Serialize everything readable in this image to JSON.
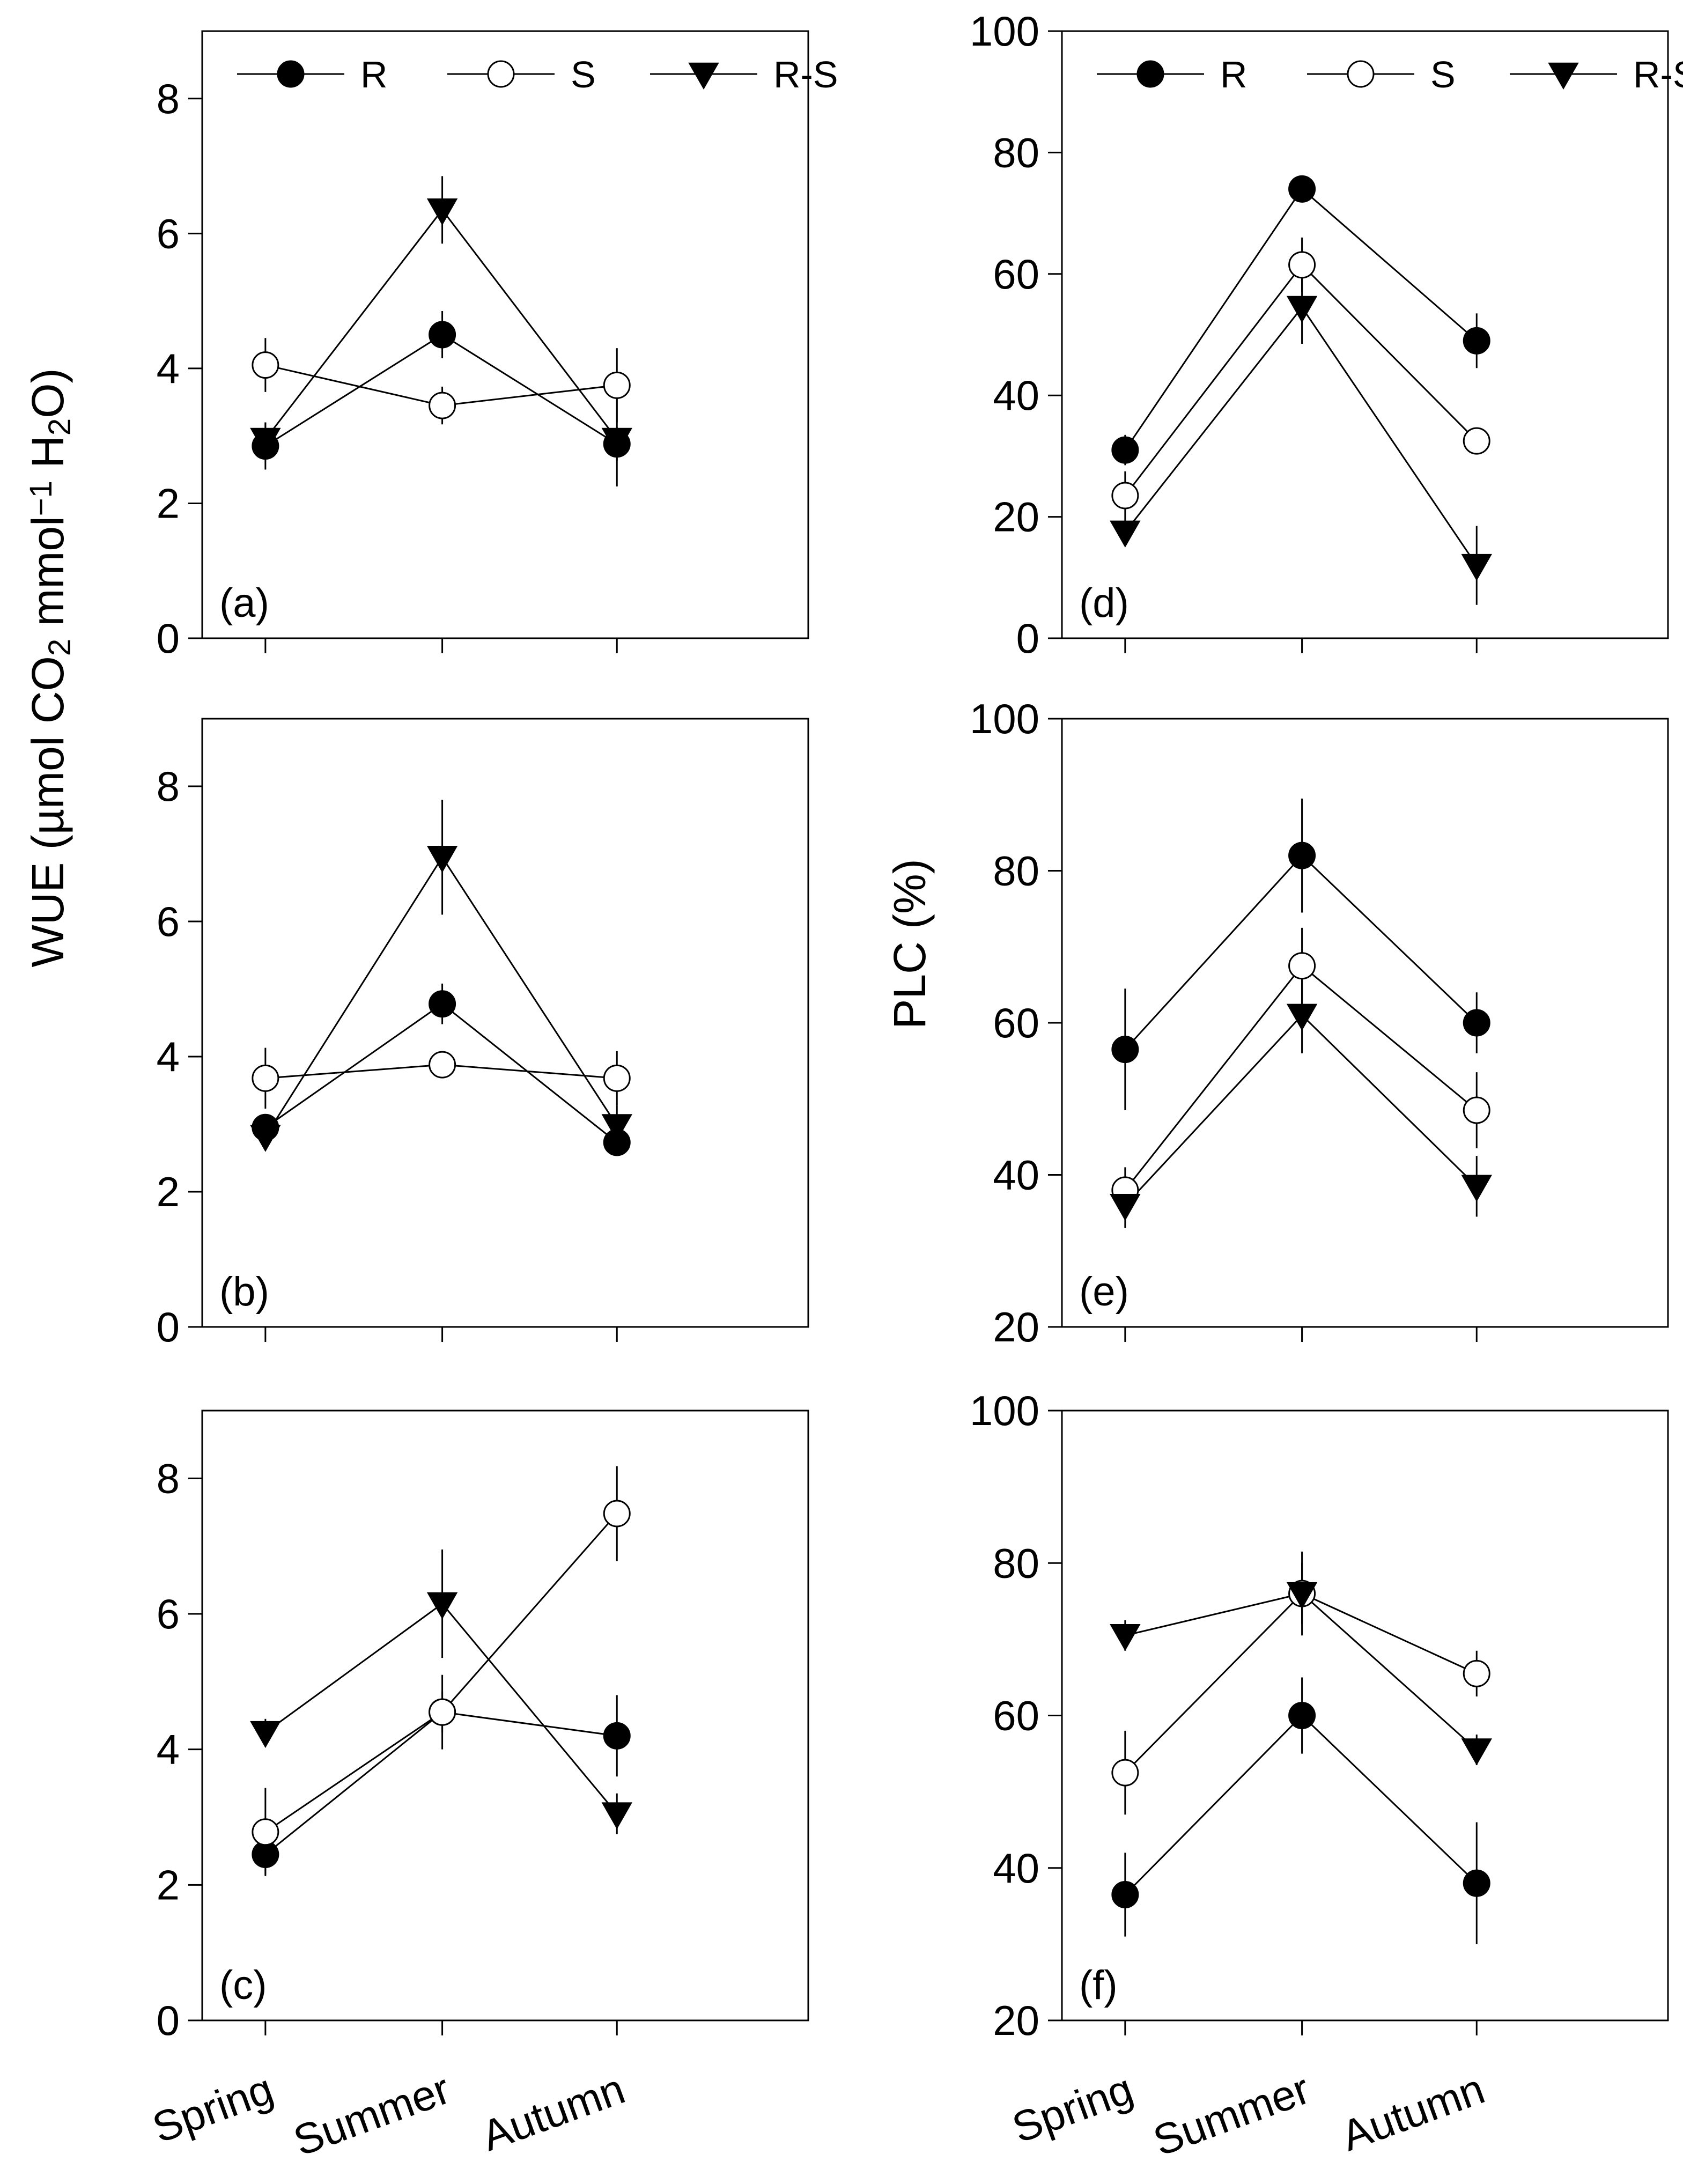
{
  "series_names": [
    "R",
    "S",
    "R-S"
  ],
  "categories": [
    "Spring",
    "Summer",
    "Autumn"
  ],
  "y_titles": {
    "left": "WUE (µmol CO2 mmol−1 H2O)",
    "left_parts": {
      "prefix": "WUE (µmol CO",
      "sub1": "2",
      "mid": " mmol",
      "sup": "−1",
      "mid2": " H",
      "sub2": "2",
      "suffix": "O)"
    },
    "right": "PLC (%)"
  },
  "colors": {
    "filled": "#000000",
    "open": "#ffffff",
    "axis": "#000000"
  },
  "chart_data": [
    {
      "panel": "(a)",
      "type": "scatter",
      "ylabel": "WUE (µmol CO2 mmol-1 H2O)",
      "ylim": [
        0,
        9
      ],
      "yticks": [
        0,
        2,
        4,
        6,
        8
      ],
      "legend": "top",
      "series": [
        {
          "name": "R",
          "marker": "filled-circle",
          "values": [
            2.85,
            4.5,
            2.88
          ],
          "err": [
            0.35,
            0.35,
            0.25
          ]
        },
        {
          "name": "S",
          "marker": "open-circle",
          "values": [
            4.05,
            3.45,
            3.75
          ],
          "err": [
            0.4,
            0.28,
            0.55
          ]
        },
        {
          "name": "R-S",
          "marker": "filled-triangle",
          "values": [
            2.95,
            6.35,
            2.95
          ],
          "err": [
            0.25,
            0.5,
            0.7
          ]
        }
      ]
    },
    {
      "panel": "(b)",
      "type": "scatter",
      "ylabel": "WUE (µmol CO2 mmol-1 H2O)",
      "ylim": [
        0,
        9
      ],
      "yticks": [
        0,
        2,
        4,
        6,
        8
      ],
      "series": [
        {
          "name": "R",
          "marker": "filled-circle",
          "values": [
            2.95,
            4.78,
            2.73
          ],
          "err": [
            0.2,
            0.3,
            0.2
          ]
        },
        {
          "name": "S",
          "marker": "open-circle",
          "values": [
            3.68,
            3.88,
            3.68
          ],
          "err": [
            0.45,
            0.2,
            0.4
          ]
        },
        {
          "name": "R-S",
          "marker": "filled-triangle",
          "values": [
            2.82,
            6.95,
            2.98
          ],
          "err": [
            0.15,
            0.85,
            0.3
          ]
        }
      ]
    },
    {
      "panel": "(c)",
      "type": "scatter",
      "ylabel": "WUE (µmol CO2 mmol-1 H2O)",
      "ylim": [
        0,
        9
      ],
      "yticks": [
        0,
        2,
        4,
        6,
        8
      ],
      "series": [
        {
          "name": "R",
          "marker": "filled-circle",
          "values": [
            2.45,
            4.55,
            4.2
          ],
          "err": [
            0.3,
            0.3,
            0.6
          ]
        },
        {
          "name": "S",
          "marker": "open-circle",
          "values": [
            2.78,
            4.55,
            7.48
          ],
          "err": [
            0.65,
            0.55,
            0.7
          ]
        },
        {
          "name": "R-S",
          "marker": "filled-triangle",
          "values": [
            4.25,
            6.15,
            3.05
          ],
          "err": [
            0.2,
            0.8,
            0.3
          ]
        }
      ]
    },
    {
      "panel": "(d)",
      "type": "scatter",
      "ylabel": "PLC (%)",
      "ylim": [
        0,
        100
      ],
      "yticks": [
        0,
        20,
        40,
        60,
        80,
        100
      ],
      "legend": "top",
      "series": [
        {
          "name": "R",
          "marker": "filled-circle",
          "values": [
            31,
            74,
            49
          ],
          "err": [
            2.5,
            2,
            4.5
          ]
        },
        {
          "name": "S",
          "marker": "open-circle",
          "values": [
            23.5,
            61.5,
            32.5
          ],
          "err": [
            4,
            4.5,
            2
          ]
        },
        {
          "name": "R-S",
          "marker": "filled-triangle",
          "values": [
            17.5,
            54.5,
            12
          ],
          "err": [
            2,
            6,
            6.5
          ]
        }
      ]
    },
    {
      "panel": "(e)",
      "type": "scatter",
      "ylabel": "PLC (%)",
      "ylim": [
        20,
        100
      ],
      "yticks": [
        20,
        40,
        60,
        80,
        100
      ],
      "series": [
        {
          "name": "R",
          "marker": "filled-circle",
          "values": [
            56.5,
            82,
            60
          ],
          "err": [
            8,
            7.5,
            4
          ]
        },
        {
          "name": "S",
          "marker": "open-circle",
          "values": [
            38,
            67.5,
            48.5
          ],
          "err": [
            3,
            5,
            5
          ]
        },
        {
          "name": "R-S",
          "marker": "filled-triangle",
          "values": [
            36,
            61,
            38.5
          ],
          "err": [
            3,
            5,
            4
          ]
        }
      ]
    },
    {
      "panel": "(f)",
      "type": "scatter",
      "ylabel": "PLC (%)",
      "ylim": [
        20,
        100
      ],
      "yticks": [
        20,
        40,
        60,
        80,
        100
      ],
      "series": [
        {
          "name": "R",
          "marker": "filled-circle",
          "values": [
            36.5,
            60,
            38
          ],
          "err": [
            5.5,
            5,
            8
          ]
        },
        {
          "name": "S",
          "marker": "open-circle",
          "values": [
            52.5,
            76,
            65.5
          ],
          "err": [
            5.5,
            4,
            3
          ]
        },
        {
          "name": "R-S",
          "marker": "filled-triangle",
          "values": [
            70.5,
            76,
            55.5
          ],
          "err": [
            2,
            5.5,
            2
          ]
        }
      ]
    }
  ]
}
